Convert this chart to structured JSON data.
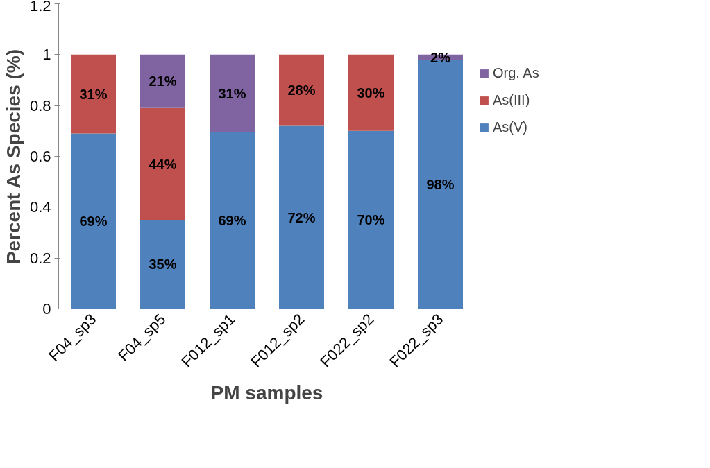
{
  "chart_data": {
    "type": "bar",
    "stacked": true,
    "xlabel": "PM samples",
    "ylabel": "Percent As Species (%)",
    "categories": [
      "F04_sp3",
      "F04_sp5",
      "F012_sp1",
      "F012_sp2",
      "F022_sp2",
      "F022_sp3"
    ],
    "series": [
      {
        "name": "As(V)",
        "color": "#4f81bd",
        "values": [
          0.69,
          0.35,
          0.695,
          0.72,
          0.7,
          0.98
        ],
        "value_labels": [
          "69%",
          "35%",
          "69%",
          "72%",
          "70%",
          "98%"
        ]
      },
      {
        "name": "As(III)",
        "color": "#c0504d",
        "values": [
          0.31,
          0.44,
          null,
          0.28,
          0.3,
          null
        ],
        "value_labels": [
          "31%",
          "44%",
          null,
          "28%",
          "30%",
          null
        ]
      },
      {
        "name": "Org. As",
        "color": "#8064a2",
        "values": [
          null,
          0.21,
          0.305,
          null,
          null,
          0.02
        ],
        "value_labels": [
          null,
          "21%",
          "31%",
          null,
          null,
          "2%"
        ]
      }
    ],
    "ylim": [
      0,
      1.2
    ],
    "yticks": [
      0,
      0.2,
      0.4,
      0.6,
      0.8,
      1,
      1.2
    ],
    "grid": false,
    "legend": "right"
  }
}
